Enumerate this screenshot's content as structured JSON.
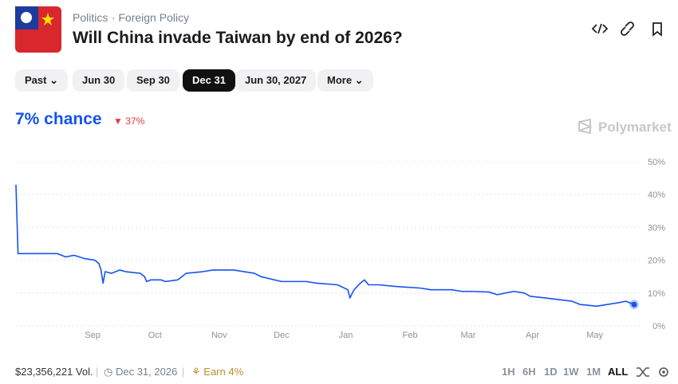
{
  "header": {
    "breadcrumbs": [
      "Politics",
      "Foreign Policy"
    ],
    "title": "Will China invade Taiwan by end of 2026?"
  },
  "tabs": [
    "Past",
    "Jun 30",
    "Sep 30",
    "Dec 31",
    "Jun 30, 2027",
    "More"
  ],
  "active_tab": 3,
  "chance": "7% chance",
  "change": "37%",
  "brand": "Polymarket",
  "chart_data": {
    "type": "line",
    "x": [
      0,
      1,
      3,
      8,
      20,
      24,
      28,
      33,
      38,
      40,
      41,
      42,
      43,
      46,
      50,
      53,
      60,
      62,
      63,
      65,
      70,
      72,
      78,
      80,
      82,
      90,
      95,
      105,
      115,
      118,
      128,
      140,
      145,
      155,
      160,
      161,
      163,
      166,
      168,
      170,
      175,
      183,
      195,
      200,
      210,
      215,
      220,
      228,
      232,
      240,
      245,
      248,
      255,
      268,
      272,
      280,
      285,
      290,
      294,
      298
    ],
    "series": [
      {
        "color": "#1652f0",
        "values": [
          43,
          22,
          22,
          22,
          22,
          21,
          21.5,
          20.5,
          20,
          19,
          17,
          13,
          16.5,
          16,
          17,
          16.5,
          16,
          15,
          13.5,
          14,
          14,
          13.5,
          14,
          15,
          16,
          16.5,
          17,
          17,
          16,
          15,
          13.5,
          13.5,
          13,
          12.5,
          11,
          8.5,
          11,
          13,
          14,
          12.5,
          12.5,
          12,
          11.5,
          11,
          11,
          10.5,
          10.5,
          10.3,
          9.5,
          10.5,
          10,
          9,
          8.5,
          7.5,
          6.5,
          6,
          6.5,
          7,
          7.5,
          6.5
        ]
      }
    ],
    "xlim": [
      0,
      298
    ],
    "xticks": [
      {
        "value": 37,
        "label": "Sep"
      },
      {
        "value": 67,
        "label": "Oct"
      },
      {
        "value": 98,
        "label": "Nov"
      },
      {
        "value": 128,
        "label": "Dec"
      },
      {
        "value": 159,
        "label": "Jan"
      },
      {
        "value": 190,
        "label": "Feb"
      },
      {
        "value": 218,
        "label": "Mar"
      },
      {
        "value": 249,
        "label": "Apr"
      },
      {
        "value": 279,
        "label": "May"
      }
    ],
    "ylim": [
      0,
      50
    ],
    "yticks": [
      {
        "value": 0,
        "label": "0%"
      },
      {
        "value": 10,
        "label": "10%"
      },
      {
        "value": 20,
        "label": "20%"
      },
      {
        "value": 30,
        "label": "30%"
      },
      {
        "value": 40,
        "label": "40%"
      },
      {
        "value": 50,
        "label": "50%"
      }
    ],
    "grid": true
  },
  "footer": {
    "volume": "$23,356,221 Vol.",
    "end_date": "Dec 31, 2026",
    "earn": "Earn 4%",
    "ranges": [
      "1H",
      "6H",
      "1D",
      "1W",
      "1M",
      "ALL"
    ],
    "active_range": 5
  }
}
